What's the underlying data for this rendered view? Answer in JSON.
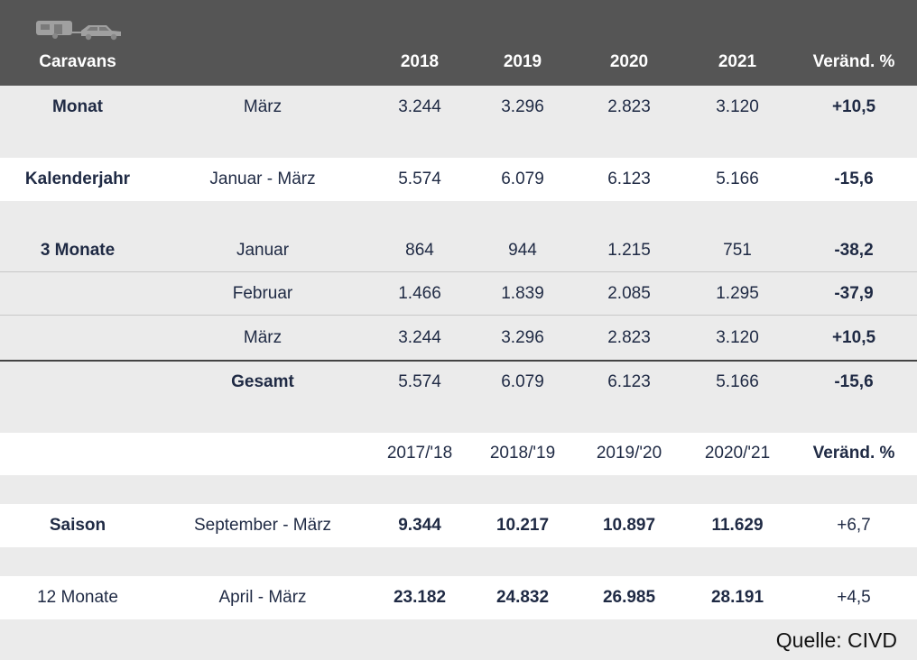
{
  "header": {
    "icon": "caravan-car-icon",
    "title": "Caravans",
    "years": [
      "2018",
      "2019",
      "2020",
      "2021"
    ],
    "change": "Veränd. %"
  },
  "rows": [
    {
      "label": "Monat",
      "period": "März",
      "values": [
        "3.244",
        "3.296",
        "2.823",
        "3.120"
      ],
      "change": "+10,5"
    },
    {
      "label": "Kalenderjahr",
      "period": "Januar - März",
      "values": [
        "5.574",
        "6.079",
        "6.123",
        "5.166"
      ],
      "change": "-15,6"
    },
    {
      "label": "3 Monate",
      "period": "Januar",
      "values": [
        "864",
        "944",
        "1.215",
        "751"
      ],
      "change": "-38,2"
    },
    {
      "label": "",
      "period": "Februar",
      "values": [
        "1.466",
        "1.839",
        "2.085",
        "1.295"
      ],
      "change": "-37,9"
    },
    {
      "label": "",
      "period": "März",
      "values": [
        "3.244",
        "3.296",
        "2.823",
        "3.120"
      ],
      "change": "+10,5"
    },
    {
      "label": "",
      "period": "Gesamt",
      "values": [
        "5.574",
        "6.079",
        "6.123",
        "5.166"
      ],
      "change": "-15,6"
    }
  ],
  "season_header": {
    "years": [
      "2017/'18",
      "2018/'19",
      "2019/'20",
      "2020/'21"
    ],
    "change": "Veränd. %"
  },
  "season_rows": [
    {
      "label": "Saison",
      "period": "September - März",
      "values": [
        "9.344",
        "10.217",
        "10.897",
        "11.629"
      ],
      "change": "+6,7"
    },
    {
      "label": "12 Monate",
      "period": "April - März",
      "values": [
        "23.182",
        "24.832",
        "26.985",
        "28.191"
      ],
      "change": "+4,5"
    }
  ],
  "source": "Quelle: CIVD",
  "colors": {
    "header_bg": "#555555",
    "text": "#1f2a44",
    "row_grey": "#ebebeb",
    "row_white": "#ffffff"
  }
}
